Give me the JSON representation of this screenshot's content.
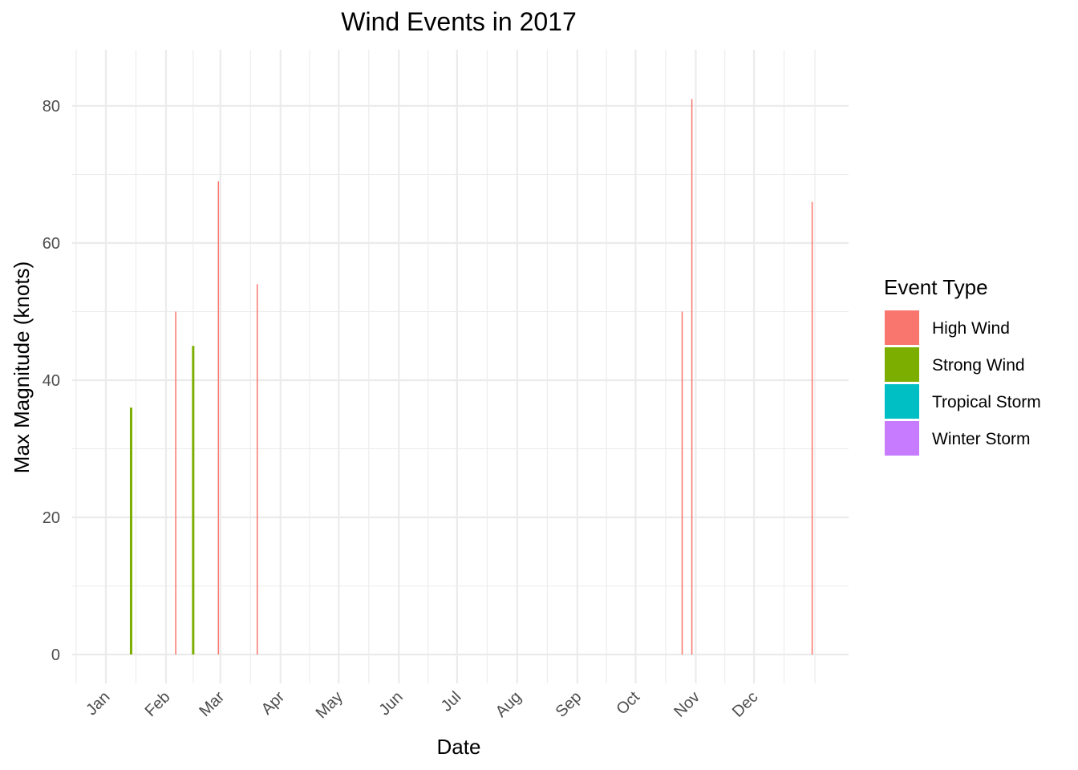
{
  "chart_data": {
    "type": "bar",
    "title": "Wind Events in 2017",
    "xlabel": "Date",
    "ylabel": "Max Magnitude (knots)",
    "x_tick_labels": [
      "Jan",
      "Feb",
      "Mar",
      "Apr",
      "May",
      "Jun",
      "Jul",
      "Aug",
      "Sep",
      "Oct",
      "Nov",
      "Dec"
    ],
    "y_tick_labels": [
      "0",
      "20",
      "40",
      "60",
      "80"
    ],
    "ylim": [
      -3.5,
      88
    ],
    "y_ticks": [
      0,
      20,
      40,
      60,
      80
    ],
    "grid": true,
    "legend": {
      "title": "Event Type",
      "position": "right",
      "entries": [
        {
          "label": "High Wind",
          "color": "#F8766D"
        },
        {
          "label": "Strong Wind",
          "color": "#7CAE00"
        },
        {
          "label": "Tropical Storm",
          "color": "#00BFC4"
        },
        {
          "label": "Winter Storm",
          "color": "#C77CFF"
        }
      ]
    },
    "series": [
      {
        "name": "High Wind",
        "color": "#F8766D",
        "points": [
          {
            "date": "2017-02-06",
            "value": 50
          },
          {
            "date": "2017-02-28",
            "value": 69
          },
          {
            "date": "2017-03-20",
            "value": 54
          },
          {
            "date": "2017-10-25",
            "value": 50
          },
          {
            "date": "2017-10-30",
            "value": 81
          },
          {
            "date": "2017-12-31",
            "value": 66
          }
        ]
      },
      {
        "name": "Strong Wind",
        "color": "#7CAE00",
        "points": [
          {
            "date": "2017-01-14",
            "value": 36
          },
          {
            "date": "2017-02-15",
            "value": 45
          }
        ]
      },
      {
        "name": "Tropical Storm",
        "color": "#00BFC4",
        "points": []
      },
      {
        "name": "Winter Storm",
        "color": "#C77CFF",
        "points": []
      }
    ]
  }
}
